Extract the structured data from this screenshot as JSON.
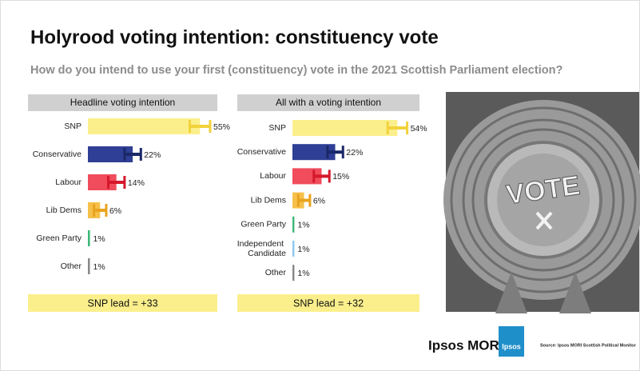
{
  "header": {
    "title": "Holyrood voting intention: constituency vote",
    "subtitle": "How do you intend to use your first (constituency) vote in the 2021 Scottish Parliament election?"
  },
  "chart_data": [
    {
      "type": "bar",
      "subtitle": "Headline voting intention",
      "categories": [
        "SNP",
        "Conservative",
        "Labour",
        "Lib Dems",
        "Green Party",
        "Other"
      ],
      "values": [
        55,
        22,
        14,
        6,
        1,
        1
      ],
      "value_labels": [
        "55%",
        "22%",
        "14%",
        "6%",
        "1%",
        "1%"
      ],
      "errors": [
        5,
        4,
        4,
        3,
        0,
        0
      ],
      "colors": [
        "#fbef8c",
        "#2e3f95",
        "#f04c5c",
        "#f6c04b",
        "#3cb878",
        "#888888"
      ],
      "error_colors": [
        "#f2d23c",
        "#1a2868",
        "#d6182b",
        "#e8a31f",
        "#3cb878",
        "#888888"
      ],
      "xlim": [
        0,
        60
      ],
      "footer": "SNP lead = +33"
    },
    {
      "type": "bar",
      "subtitle": "All with a voting intention",
      "categories": [
        "SNP",
        "Conservative",
        "Labour",
        "Lib Dems",
        "Green Party",
        "Independent Candidate",
        "Other"
      ],
      "values": [
        54,
        22,
        15,
        6,
        1,
        1,
        1
      ],
      "value_labels": [
        "54%",
        "22%",
        "15%",
        "6%",
        "1%",
        "1%",
        "1%"
      ],
      "errors": [
        5,
        4,
        4,
        3,
        0,
        0,
        0
      ],
      "colors": [
        "#fbef8c",
        "#2e3f95",
        "#f04c5c",
        "#f6c04b",
        "#3cb878",
        "#8ec8ef",
        "#888888"
      ],
      "error_colors": [
        "#f2d23c",
        "#1a2868",
        "#d6182b",
        "#e8a31f",
        "#3cb878",
        "#8ec8ef",
        "#888888"
      ],
      "xlim": [
        0,
        60
      ],
      "footer": "SNP lead = +32"
    }
  ],
  "image": {
    "text": "VOTE"
  },
  "footer": {
    "brand": "Ipsos MORI",
    "logo": "Ipsos",
    "source": "Source: Ipsos MORI Scottish Political Monitor"
  }
}
